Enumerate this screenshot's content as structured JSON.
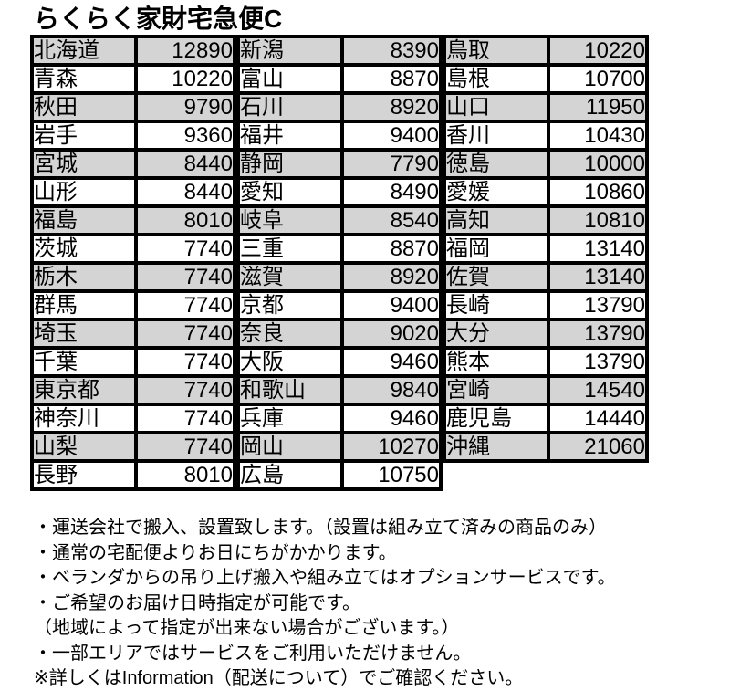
{
  "title": "らくらく家財宅急便C",
  "colors": {
    "row_shade": "#d4d4d4",
    "border": "#000000",
    "background": "#ffffff",
    "text": "#000000"
  },
  "rate_table": {
    "groups": [
      {
        "rows": [
          {
            "prefecture": "北海道",
            "price": "12890"
          },
          {
            "prefecture": "青森",
            "price": "10220"
          },
          {
            "prefecture": "秋田",
            "price": "9790"
          },
          {
            "prefecture": "岩手",
            "price": "9360"
          },
          {
            "prefecture": "宮城",
            "price": "8440"
          },
          {
            "prefecture": "山形",
            "price": "8440"
          },
          {
            "prefecture": "福島",
            "price": "8010"
          },
          {
            "prefecture": "茨城",
            "price": "7740"
          },
          {
            "prefecture": "栃木",
            "price": "7740"
          },
          {
            "prefecture": "群馬",
            "price": "7740"
          },
          {
            "prefecture": "埼玉",
            "price": "7740"
          },
          {
            "prefecture": "千葉",
            "price": "7740"
          },
          {
            "prefecture": "東京都",
            "price": "7740"
          },
          {
            "prefecture": "神奈川",
            "price": "7740"
          },
          {
            "prefecture": "山梨",
            "price": "7740"
          },
          {
            "prefecture": "長野",
            "price": "8010"
          }
        ]
      },
      {
        "rows": [
          {
            "prefecture": "新潟",
            "price": "8390"
          },
          {
            "prefecture": "富山",
            "price": "8870"
          },
          {
            "prefecture": "石川",
            "price": "8920"
          },
          {
            "prefecture": "福井",
            "price": "9400"
          },
          {
            "prefecture": "静岡",
            "price": "7790"
          },
          {
            "prefecture": "愛知",
            "price": "8490"
          },
          {
            "prefecture": "岐阜",
            "price": "8540"
          },
          {
            "prefecture": "三重",
            "price": "8870"
          },
          {
            "prefecture": "滋賀",
            "price": "8920"
          },
          {
            "prefecture": "京都",
            "price": "9400"
          },
          {
            "prefecture": "奈良",
            "price": "9020"
          },
          {
            "prefecture": "大阪",
            "price": "9460"
          },
          {
            "prefecture": "和歌山",
            "price": "9840"
          },
          {
            "prefecture": "兵庫",
            "price": "9460"
          },
          {
            "prefecture": "岡山",
            "price": "10270"
          },
          {
            "prefecture": "広島",
            "price": "10750"
          }
        ]
      },
      {
        "rows": [
          {
            "prefecture": "鳥取",
            "price": "10220"
          },
          {
            "prefecture": "島根",
            "price": "10700"
          },
          {
            "prefecture": "山口",
            "price": "11950"
          },
          {
            "prefecture": "香川",
            "price": "10430"
          },
          {
            "prefecture": "徳島",
            "price": "10000"
          },
          {
            "prefecture": "愛媛",
            "price": "10860"
          },
          {
            "prefecture": "高知",
            "price": "10810"
          },
          {
            "prefecture": "福岡",
            "price": "13140"
          },
          {
            "prefecture": "佐賀",
            "price": "13140"
          },
          {
            "prefecture": "長崎",
            "price": "13790"
          },
          {
            "prefecture": "大分",
            "price": "13790"
          },
          {
            "prefecture": "熊本",
            "price": "13790"
          },
          {
            "prefecture": "宮崎",
            "price": "14540"
          },
          {
            "prefecture": "鹿児島",
            "price": "14440"
          },
          {
            "prefecture": "沖縄",
            "price": "21060"
          }
        ]
      }
    ]
  },
  "notes": [
    "・運送会社で搬入、設置致します。（設置は組み立て済みの商品のみ）",
    "・通常の宅配便よりお日にちがかかります。",
    "・ベランダからの吊り上げ搬入や組み立てはオプションサービスです。",
    "・ご希望のお届け日時指定が可能です。",
    "（地域によって指定が出来ない場合がございます。）",
    "・一部エリアではサービスをご利用いただけません。",
    "※詳しくはInformation（配送について）でご確認ください。"
  ]
}
